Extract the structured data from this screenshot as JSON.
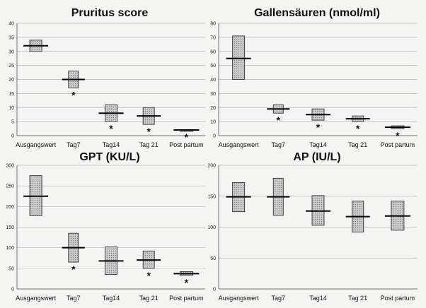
{
  "chart_data": [
    {
      "type": "box",
      "title": "Pruritus score",
      "ylim": [
        0,
        40
      ],
      "ticks": [
        0,
        5,
        10,
        15,
        20,
        25,
        30,
        35,
        40
      ],
      "categories": [
        "Ausgangswert",
        "Tag7",
        "Tag14",
        "Tag 21",
        "Post partum"
      ],
      "low": [
        30,
        17,
        5,
        4,
        2
      ],
      "high": [
        34,
        23,
        11,
        10,
        2
      ],
      "median": [
        32,
        20,
        8,
        7,
        2
      ],
      "significant": [
        false,
        true,
        true,
        true,
        true
      ]
    },
    {
      "type": "box",
      "title": "Gallensäuren (nmol/ml)",
      "ylim": [
        0,
        80
      ],
      "ticks": [
        0,
        10,
        20,
        30,
        40,
        50,
        60,
        70,
        80
      ],
      "categories": [
        "Ausgangswert",
        "Tag7",
        "Tag14",
        "Tag 21",
        "Post partum"
      ],
      "low": [
        40,
        16,
        11,
        10,
        5
      ],
      "high": [
        71,
        22,
        19,
        14,
        7
      ],
      "median": [
        55,
        19,
        15,
        12,
        6
      ],
      "significant": [
        false,
        true,
        true,
        true,
        true
      ]
    },
    {
      "type": "box",
      "title": "GPT (KU/L)",
      "ylim": [
        0,
        300
      ],
      "ticks": [
        0,
        50,
        100,
        150,
        200,
        250,
        300
      ],
      "categories": [
        "Ausgangswert",
        "Tag7",
        "Tag14",
        "Tag 21",
        "Post partum"
      ],
      "low": [
        178,
        65,
        35,
        50,
        33
      ],
      "high": [
        275,
        135,
        102,
        92,
        42
      ],
      "median": [
        225,
        100,
        68,
        70,
        37
      ],
      "significant": [
        false,
        true,
        false,
        true,
        true
      ]
    },
    {
      "type": "box",
      "title": "AP (IU/L)",
      "ylim": [
        0,
        200
      ],
      "ticks": [
        0,
        50,
        100,
        150,
        200
      ],
      "categories": [
        "Ausgangswert",
        "Tag7",
        "Tag14",
        "Tag 21",
        "Post partum"
      ],
      "low": [
        125,
        119,
        103,
        92,
        95
      ],
      "high": [
        172,
        179,
        151,
        142,
        142
      ],
      "median": [
        149,
        149,
        126,
        117,
        118
      ],
      "significant": [
        false,
        false,
        false,
        false,
        false
      ]
    }
  ],
  "significance_marker": "*"
}
